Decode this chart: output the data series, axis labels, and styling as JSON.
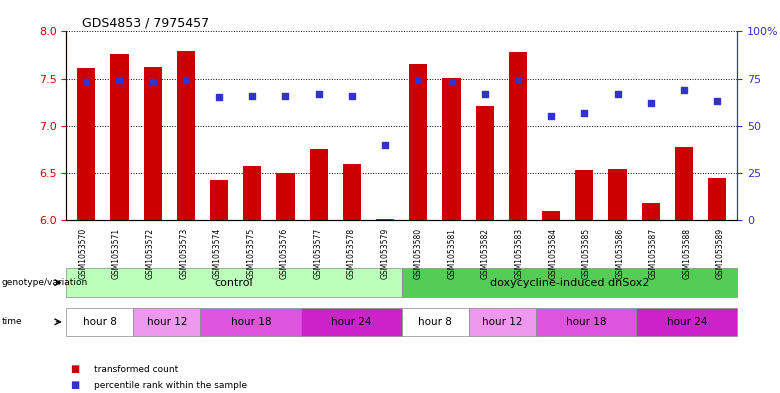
{
  "title": "GDS4853 / 7975457",
  "samples": [
    "GSM1053570",
    "GSM1053571",
    "GSM1053572",
    "GSM1053573",
    "GSM1053574",
    "GSM1053575",
    "GSM1053576",
    "GSM1053577",
    "GSM1053578",
    "GSM1053579",
    "GSM1053580",
    "GSM1053581",
    "GSM1053582",
    "GSM1053583",
    "GSM1053584",
    "GSM1053585",
    "GSM1053586",
    "GSM1053587",
    "GSM1053588",
    "GSM1053589"
  ],
  "transformed_count": [
    7.61,
    7.76,
    7.62,
    7.79,
    6.43,
    6.57,
    6.5,
    6.75,
    6.59,
    6.01,
    7.65,
    7.51,
    7.21,
    7.78,
    6.1,
    6.53,
    6.54,
    6.18,
    6.78,
    6.45
  ],
  "percentile_rank": [
    73,
    74,
    73,
    74,
    65,
    66,
    66,
    67,
    66,
    40,
    74,
    73,
    67,
    74,
    55,
    57,
    67,
    62,
    69,
    63
  ],
  "ylim_left": [
    6,
    8
  ],
  "ylim_right": [
    0,
    100
  ],
  "yticks_left": [
    6.0,
    6.5,
    7.0,
    7.5,
    8.0
  ],
  "yticks_right": [
    0,
    25,
    50,
    75,
    100
  ],
  "bar_color": "#cc0000",
  "dot_color": "#3333cc",
  "genotype_groups": [
    {
      "label": "control",
      "start": 0,
      "end": 9,
      "color": "#bbffbb"
    },
    {
      "label": "doxycycline-induced dnSox2",
      "start": 10,
      "end": 19,
      "color": "#55cc55"
    }
  ],
  "time_groups": [
    {
      "label": "hour 8",
      "start": 0,
      "end": 1,
      "color": "#ffffff"
    },
    {
      "label": "hour 12",
      "start": 2,
      "end": 3,
      "color": "#ee99ee"
    },
    {
      "label": "hour 18",
      "start": 4,
      "end": 6,
      "color": "#dd55dd"
    },
    {
      "label": "hour 24",
      "start": 7,
      "end": 9,
      "color": "#cc22cc"
    },
    {
      "label": "hour 8",
      "start": 10,
      "end": 11,
      "color": "#ffffff"
    },
    {
      "label": "hour 12",
      "start": 12,
      "end": 13,
      "color": "#ee99ee"
    },
    {
      "label": "hour 18",
      "start": 14,
      "end": 16,
      "color": "#dd55dd"
    },
    {
      "label": "hour 24",
      "start": 17,
      "end": 19,
      "color": "#cc22cc"
    }
  ],
  "legend_items": [
    {
      "label": "transformed count",
      "color": "#cc0000"
    },
    {
      "label": "percentile rank within the sample",
      "color": "#3333cc"
    }
  ]
}
